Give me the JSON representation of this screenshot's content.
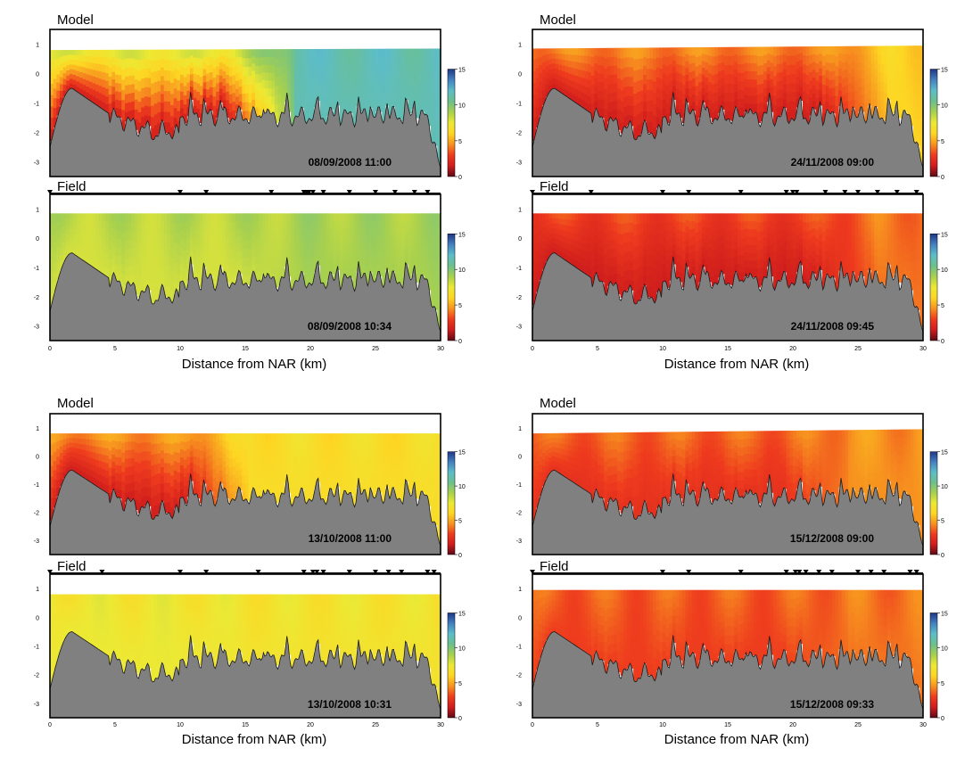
{
  "figure": {
    "distance_label": "Distance from NAR (km)",
    "x_ticks": [
      "0",
      "5",
      "10",
      "15",
      "20",
      "25",
      "30"
    ],
    "y_ticks": [
      "1",
      "0",
      "-1",
      "-2",
      "-3"
    ],
    "colorbar_ticks": [
      "0",
      "5",
      "10",
      "15"
    ],
    "colors": {
      "bed": "#808080",
      "bed_outline": "#1a1a1a",
      "colormap": [
        "#5e0a16",
        "#cf1d1d",
        "#ee3b1e",
        "#f7921f",
        "#fdd623",
        "#ece934",
        "#a7d04f",
        "#6cc08c",
        "#5dbdc8",
        "#4480c0",
        "#1f3688"
      ]
    }
  },
  "chart_data": [
    {
      "type": "heatmap",
      "group": "Model",
      "title": "Model",
      "timestamp": "08/09/2008 11:00",
      "xlabel": "",
      "ylabel": "",
      "xlim": [
        0,
        30
      ],
      "ylim": [
        -3.5,
        1.5
      ],
      "clim": [
        0,
        15
      ],
      "surface": [
        [
          0,
          0.8
        ],
        [
          30,
          0.85
        ]
      ],
      "front_km": 16.5,
      "upstream_value": 1.5,
      "downstream_value": 11.5,
      "stations_km": []
    },
    {
      "type": "heatmap",
      "group": "Field",
      "title": "Field",
      "timestamp": "08/09/2008 10:34",
      "xlabel": "Distance from NAR (km)",
      "ylabel": "",
      "xlim": [
        0,
        30
      ],
      "ylim": [
        -3.5,
        1.5
      ],
      "clim": [
        0,
        15
      ],
      "surface": [
        [
          0,
          0.85
        ],
        [
          30,
          0.85
        ]
      ],
      "front_km": 17,
      "upstream_value": 8,
      "downstream_value": 9,
      "stations_km": [
        0,
        10,
        12,
        17,
        19.5,
        19.7,
        19.9,
        20.2,
        21,
        23,
        25,
        26.5,
        28,
        29
      ]
    },
    {
      "type": "heatmap",
      "group": "Model",
      "title": "Model",
      "timestamp": "13/10/2008 11:00",
      "xlabel": "",
      "ylabel": "",
      "xlim": [
        0,
        30
      ],
      "ylim": [
        -3.5,
        1.5
      ],
      "clim": [
        0,
        15
      ],
      "surface": [
        [
          0,
          0.8
        ],
        [
          30,
          0.8
        ]
      ],
      "front_km": 13,
      "upstream_value": 1.5,
      "downstream_value": 6.5,
      "stations_km": []
    },
    {
      "type": "heatmap",
      "group": "Field",
      "title": "Field",
      "timestamp": "13/10/2008 10:31",
      "xlabel": "Distance from NAR (km)",
      "ylabel": "",
      "xlim": [
        0,
        30
      ],
      "ylim": [
        -3.5,
        1.5
      ],
      "clim": [
        0,
        15
      ],
      "surface": [
        [
          0,
          0.8
        ],
        [
          30,
          0.8
        ]
      ],
      "front_km": 13,
      "upstream_value": 7.5,
      "downstream_value": 7,
      "stations_km": [
        0,
        4,
        10,
        12,
        16,
        19.5,
        20.2,
        20.5,
        21,
        23,
        25,
        26,
        27,
        29,
        29.5
      ]
    },
    {
      "type": "heatmap",
      "group": "Model",
      "title": "Model",
      "timestamp": "24/11/2008 09:00",
      "xlabel": "",
      "ylabel": "",
      "xlim": [
        0,
        30
      ],
      "ylim": [
        -3.5,
        1.5
      ],
      "clim": [
        0,
        15
      ],
      "surface": [
        [
          0,
          0.85
        ],
        [
          30,
          0.95
        ]
      ],
      "front_km": 25,
      "upstream_value": 1.5,
      "downstream_value": 6,
      "stations_km": []
    },
    {
      "type": "heatmap",
      "group": "Field",
      "title": "Field",
      "timestamp": "24/11/2008 09:45",
      "xlabel": "Distance from NAR (km)",
      "ylabel": "",
      "xlim": [
        0,
        30
      ],
      "ylim": [
        -3.5,
        1.5
      ],
      "clim": [
        0,
        15
      ],
      "surface": [
        [
          0,
          0.85
        ],
        [
          30,
          0.85
        ]
      ],
      "front_km": 24,
      "upstream_value": 1.5,
      "downstream_value": 4,
      "stations_km": [
        0,
        4.5,
        10,
        12,
        16,
        19.5,
        20,
        20.3,
        22.5,
        24,
        25,
        26.5,
        28,
        29.5
      ]
    },
    {
      "type": "heatmap",
      "group": "Model",
      "title": "Model",
      "timestamp": "15/12/2008 09:00",
      "xlabel": "",
      "ylabel": "",
      "xlim": [
        0,
        30
      ],
      "ylim": [
        -3.5,
        1.5
      ],
      "clim": [
        0,
        15
      ],
      "surface": [
        [
          0,
          0.8
        ],
        [
          30,
          0.95
        ]
      ],
      "front_km": 22,
      "upstream_value": 2.5,
      "downstream_value": 4.5,
      "stations_km": []
    },
    {
      "type": "heatmap",
      "group": "Field",
      "title": "Field",
      "timestamp": "15/12/2008 09:33",
      "xlabel": "Distance from NAR (km)",
      "ylabel": "",
      "xlim": [
        0,
        30
      ],
      "ylim": [
        -3.5,
        1.5
      ],
      "clim": [
        0,
        15
      ],
      "surface": [
        [
          0,
          0.95
        ],
        [
          30,
          0.95
        ]
      ],
      "front_km": 22,
      "upstream_value": 3,
      "downstream_value": 4,
      "stations_km": [
        0,
        10,
        12,
        16,
        19.5,
        20.2,
        20.5,
        21,
        22,
        23,
        25,
        26,
        27,
        29,
        29.5
      ]
    }
  ]
}
